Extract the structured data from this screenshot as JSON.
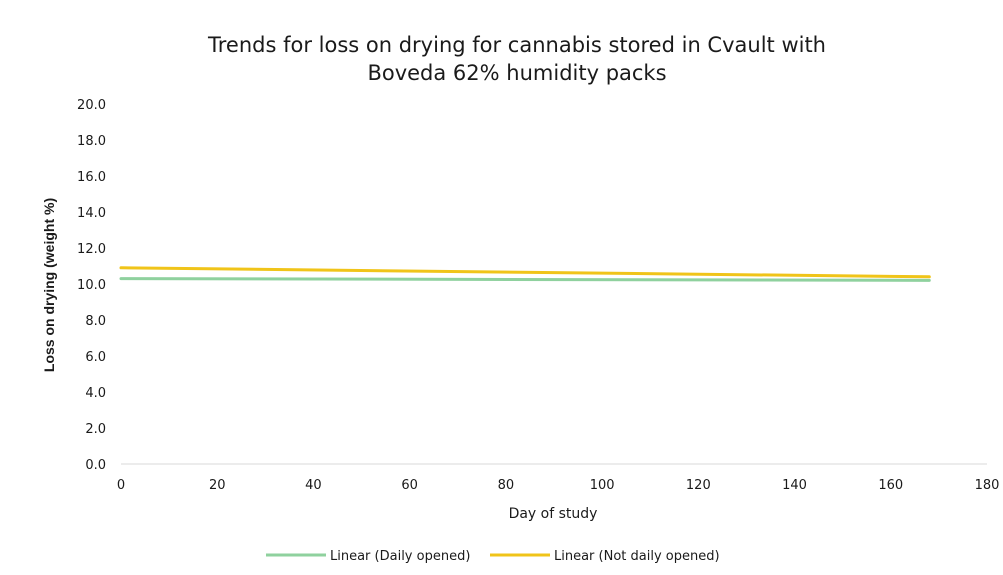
{
  "chart_data": {
    "type": "line",
    "title_lines": [
      "Trends for loss on drying for cannabis stored in Cvault with",
      "Boveda 62% humidity packs"
    ],
    "xlabel": "Day of study",
    "ylabel": "Loss on drying (weight %)",
    "xlim": [
      0,
      180
    ],
    "ylim": [
      0,
      20
    ],
    "x_ticks": [
      "0",
      "20",
      "40",
      "60",
      "80",
      "100",
      "120",
      "140",
      "160",
      "180"
    ],
    "y_ticks": [
      "0.0",
      "2.0",
      "4.0",
      "6.0",
      "8.0",
      "10.0",
      "12.0",
      "14.0",
      "16.0",
      "18.0",
      "20.0"
    ],
    "grid": false,
    "legend_position": "bottom",
    "series": [
      {
        "name": "Linear (Daily opened)",
        "color": "#8fd19e",
        "x": [
          0,
          168
        ],
        "y": [
          10.3,
          10.2
        ]
      },
      {
        "name": "Linear (Not daily opened)",
        "color": "#f0c419",
        "x": [
          0,
          168
        ],
        "y": [
          10.9,
          10.4
        ]
      }
    ]
  }
}
